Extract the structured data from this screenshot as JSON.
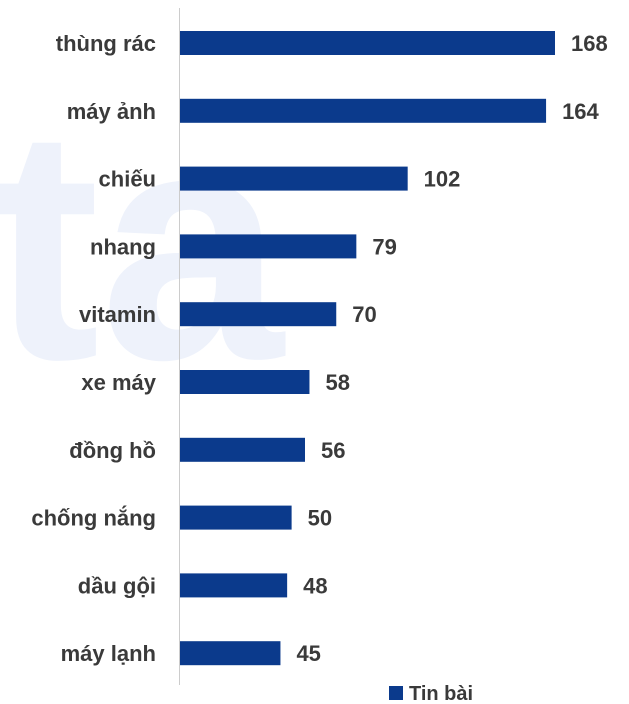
{
  "chart_data": {
    "type": "bar",
    "orientation": "horizontal",
    "categories": [
      "thùng rác",
      "máy ảnh",
      "chiếu",
      "nhang",
      "vitamin",
      "xe máy",
      "đồng hồ",
      "chống nắng",
      "dầu gội",
      "máy lạnh"
    ],
    "series": [
      {
        "name": "Tin bài",
        "values": [
          168,
          164,
          102,
          79,
          70,
          58,
          56,
          50,
          48,
          45
        ]
      }
    ],
    "xlim": [
      0,
      180
    ],
    "grid": false,
    "legend_position": "bottom-right",
    "data_labels": true
  },
  "colors": {
    "bar": "#0b3a8c",
    "axis": "#cccccc",
    "text": "#3a3a3a"
  }
}
